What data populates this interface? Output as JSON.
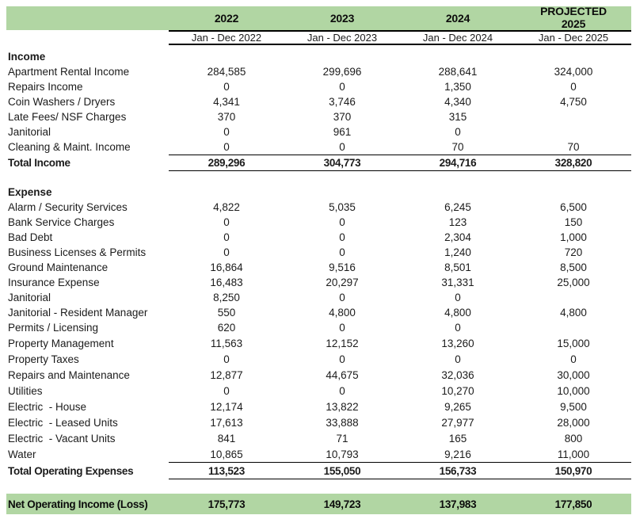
{
  "report": {
    "accent_green": "#b1d6a3",
    "columns": [
      {
        "year": "2022",
        "period": "Jan - Dec 2022"
      },
      {
        "year": "2023",
        "period": "Jan - Dec 2023"
      },
      {
        "year": "2024",
        "period": "Jan - Dec 2024"
      },
      {
        "year": "PROJECTED 2025",
        "period": "Jan - Dec 2025"
      }
    ],
    "income": {
      "title": "Income",
      "rows": [
        {
          "label": "Apartment Rental Income",
          "values": [
            "284,585",
            "299,696",
            "288,641",
            "324,000"
          ]
        },
        {
          "label": "Repairs Income",
          "values": [
            "0",
            "0",
            "1,350",
            "0"
          ]
        },
        {
          "label": "Coin Washers / Dryers",
          "values": [
            "4,341",
            "3,746",
            "4,340",
            "4,750"
          ]
        },
        {
          "label": "Late Fees/ NSF Charges",
          "values": [
            "370",
            "370",
            "315",
            ""
          ]
        },
        {
          "label": "Janitorial",
          "values": [
            "0",
            "961",
            "0",
            ""
          ]
        },
        {
          "label": "Cleaning & Maint. Income",
          "values": [
            "0",
            "0",
            "70",
            "70"
          ]
        }
      ],
      "total": {
        "label": "Total Income",
        "values": [
          "289,296",
          "304,773",
          "294,716",
          "328,820"
        ]
      }
    },
    "expense": {
      "title": "Expense",
      "rows": [
        {
          "label": "Alarm / Security Services",
          "values": [
            "4,822",
            "5,035",
            "6,245",
            "6,500"
          ]
        },
        {
          "label": "Bank Service Charges",
          "values": [
            "0",
            "0",
            "123",
            "150"
          ]
        },
        {
          "label": "Bad Debt",
          "values": [
            "0",
            "0",
            "2,304",
            "1,000"
          ]
        },
        {
          "label": "Business Licenses & Permits",
          "values": [
            "0",
            "0",
            "1,240",
            "720"
          ]
        },
        {
          "label": "Ground Maintenance",
          "values": [
            "16,864",
            "9,516",
            "8,501",
            "8,500"
          ]
        },
        {
          "label": "Insurance Expense",
          "values": [
            "16,483",
            "20,297",
            "31,331",
            "25,000"
          ]
        },
        {
          "label": "Janitorial",
          "values": [
            "8,250",
            "0",
            "0",
            ""
          ]
        },
        {
          "label": "Janitorial - Resident Manager",
          "values": [
            "550",
            "4,800",
            "4,800",
            "4,800"
          ]
        },
        {
          "label": "Permits / Licensing",
          "values": [
            "620",
            "0",
            "0",
            ""
          ]
        },
        {
          "label": "Property Management",
          "values": [
            "11,563",
            "12,152",
            "13,260",
            "15,000"
          ]
        },
        {
          "label": "Property Taxes",
          "values": [
            "0",
            "0",
            "0",
            "0"
          ]
        },
        {
          "label": "Repairs and Maintenance",
          "values": [
            "12,877",
            "44,675",
            "32,036",
            "30,000"
          ]
        },
        {
          "label": "Utilities",
          "values": [
            "0",
            "0",
            "10,270",
            "10,000"
          ]
        },
        {
          "label": "Electric  - House",
          "values": [
            "12,174",
            "13,822",
            "9,265",
            "9,500"
          ]
        },
        {
          "label": "Electric  - Leased Units",
          "values": [
            "17,613",
            "33,888",
            "27,977",
            "28,000"
          ]
        },
        {
          "label": "Electric  - Vacant Units",
          "values": [
            "841",
            "71",
            "165",
            "800"
          ]
        },
        {
          "label": "Water",
          "values": [
            "10,865",
            "10,793",
            "9,216",
            "11,000"
          ]
        }
      ],
      "total": {
        "label": "Total Operating Expenses",
        "values": [
          "113,523",
          "155,050",
          "156,733",
          "150,970"
        ]
      }
    },
    "net": {
      "label": "Net Operating Income (Loss)",
      "values": [
        "175,773",
        "149,723",
        "137,983",
        "177,850"
      ]
    }
  }
}
